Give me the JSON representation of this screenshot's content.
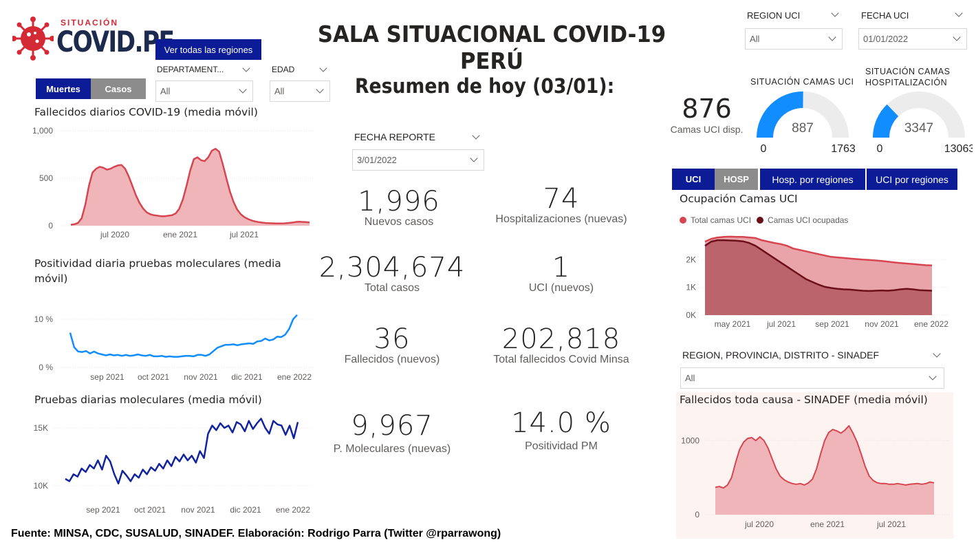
{
  "header": {
    "logo_top": "SITUACIÓN",
    "logo_main": "COVID.PE",
    "title": "SALA SITUACIONAL COVID-19 PERÚ",
    "see_all_regions": "Ver todas las regiones"
  },
  "filters": {
    "departamento": {
      "label": "DEPARTAMENT...",
      "value": "All"
    },
    "edad": {
      "label": "EDAD",
      "value": "All"
    },
    "region_uci": {
      "label": "REGION UCI",
      "value": "All"
    },
    "fecha_uci": {
      "label": "FECHA UCI",
      "value": "01/01/2022"
    },
    "fecha_reporte": {
      "label": "FECHA REPORTE",
      "value": "3/01/2022"
    },
    "region_sinadef": {
      "label": "REGION, PROVINCIA, DISTRITO - SINADEF",
      "value": "All"
    }
  },
  "left_tabs": {
    "muertes": "Muertes",
    "casos": "Casos"
  },
  "summary": {
    "title": "Resumen de hoy (03/01):",
    "kpis": [
      {
        "value": "1,996",
        "label": "Nuevos casos"
      },
      {
        "value": "74",
        "label": "Hospitalizaciones (nuevas)"
      },
      {
        "value": "2,304,674",
        "label": "Total casos"
      },
      {
        "value": "1",
        "label": "UCI (nuevos)"
      },
      {
        "value": "36",
        "label": "Fallecidos  (nuevos)"
      },
      {
        "value": "202,818",
        "label": "Total fallecidos Covid Minsa"
      },
      {
        "value": "9,967",
        "label": "P. Moleculares (nuevas)"
      },
      {
        "value": "14.0 %",
        "label": "Positividad PM"
      }
    ]
  },
  "uci_card": {
    "value": "876",
    "label": "Camas UCI disp."
  },
  "gauges": [
    {
      "title": "SITUACIÓN CAMAS UCI",
      "value": 887,
      "min": 0,
      "max": 1763,
      "value_label": "887",
      "min_label": "0",
      "max_label": "1763",
      "color": "#118dff"
    },
    {
      "title_line1": "SITUACIÓN CAMAS",
      "title_line2": "HOSPITALIZACIÓN",
      "value": 3347,
      "min": 0,
      "max": 13063,
      "value_label": "3347",
      "min_label": "0",
      "max_label": "13063",
      "color": "#118dff"
    }
  ],
  "right_tabs": {
    "uci": "UCI",
    "hosp": "HOSP",
    "hosp_regiones": "Hosp. por regiones",
    "uci_regiones": "UCI por regiones"
  },
  "footer": {
    "source": "Fuente: MINSA, CDC, SUSALUD, SINADEF. Elaboración: Rodrigo Parra (Twitter @rparrawong)"
  },
  "colors": {
    "navy": "#0b1c96",
    "red": "#d64550",
    "red_fill": "#efb5b9",
    "blue": "#118dff",
    "darkblue": "#12239e",
    "maroon": "#6b0f1a"
  },
  "chart_data": [
    {
      "id": "fallecidos",
      "type": "area",
      "title": "Fallecidos diarios COVID-19 (media móvil)",
      "ylim": [
        0,
        1000
      ],
      "yticks": [
        "0",
        "500",
        "1,000"
      ],
      "xticks": [
        "jul 2020",
        "ene 2021",
        "jul 2021"
      ],
      "values": [
        10,
        15,
        30,
        80,
        220,
        420,
        560,
        600,
        620,
        610,
        590,
        600,
        620,
        635,
        640,
        600,
        520,
        420,
        320,
        240,
        180,
        140,
        120,
        110,
        105,
        100,
        100,
        105,
        110,
        130,
        180,
        280,
        420,
        580,
        700,
        720,
        690,
        680,
        720,
        790,
        810,
        780,
        650,
        500,
        360,
        250,
        170,
        120,
        90,
        70,
        55,
        45,
        38,
        32,
        28,
        26,
        25,
        24,
        24,
        25,
        28,
        32,
        38,
        42,
        40,
        38,
        35
      ]
    },
    {
      "id": "positividad",
      "type": "line",
      "title": "Positividad diaria pruebas moleculares (media móvil)",
      "ylim": [
        0,
        12
      ],
      "yticks": [
        "0 %",
        "10 %"
      ],
      "xticks": [
        "sep 2021",
        "oct 2021",
        "nov 2021",
        "dic 2021",
        "ene 2022"
      ],
      "values": [
        7.2,
        4.2,
        3.3,
        3.2,
        3.4,
        2.9,
        3.3,
        2.9,
        2.7,
        2.5,
        2.7,
        2.5,
        2.6,
        2.4,
        2.6,
        2.4,
        2.5,
        2.7,
        2.5,
        2.4,
        2.6,
        2.3,
        2.3,
        2.4,
        2.2,
        2.3,
        2.2,
        2.2,
        2.3,
        2.4,
        2.4,
        2.3,
        2.6,
        2.6,
        2.4,
        2.7,
        3.4,
        4.1,
        4.4,
        4.7,
        4.7,
        4.8,
        4.6,
        4.8,
        4.9,
        5.0,
        4.9,
        5.4,
        5.5,
        6.0,
        5.6,
        5.8,
        6.4,
        6.3,
        6.8,
        8.0,
        10.0,
        10.9
      ]
    },
    {
      "id": "pruebas",
      "type": "line",
      "title": "Pruebas diarias moleculares (media móvil)",
      "ylim": [
        9000,
        16000
      ],
      "yticks": [
        "10K",
        "15K"
      ],
      "xticks": [
        "sep 2021",
        "oct 2021",
        "nov 2021",
        "dic 2021",
        "ene 2022"
      ],
      "values": [
        10600,
        10400,
        11000,
        10800,
        11500,
        11200,
        11800,
        11500,
        12200,
        11400,
        12600,
        12100,
        11000,
        10200,
        11300,
        10900,
        10400,
        11000,
        10700,
        11400,
        11000,
        11600,
        11300,
        11900,
        11500,
        12200,
        11700,
        12500,
        12100,
        12700,
        12200,
        12600,
        12000,
        13000,
        12400,
        14500,
        15200,
        14800,
        15400,
        15000,
        15200,
        14600,
        15500,
        15300,
        14700,
        15600,
        14900,
        15400,
        15800,
        15000,
        14500,
        15600,
        15300,
        15200,
        14400,
        15200,
        14100,
        15500
      ]
    },
    {
      "id": "ocupacion_uci",
      "type": "area",
      "title": "Ocupación Camas UCI",
      "ylim": [
        0,
        3000
      ],
      "yticks": [
        "0K",
        "1K",
        "2K"
      ],
      "xticks": [
        "may 2021",
        "jul 2021",
        "sep 2021",
        "nov 2021",
        "ene 2022"
      ],
      "series": [
        {
          "name": "Total camas UCI",
          "values": [
            2650,
            2750,
            2800,
            2820,
            2830,
            2820,
            2820,
            2800,
            2780,
            2700,
            2650,
            2600,
            2560,
            2500,
            2400,
            2350,
            2300,
            2250,
            2200,
            2150,
            2100,
            2080,
            2060,
            2040,
            2020,
            2000,
            1990,
            1970,
            1950,
            1930,
            1900,
            1880,
            1860,
            1840,
            1820,
            1800,
            1790
          ]
        },
        {
          "name": "Camas UCI ocupadas",
          "values": [
            2500,
            2650,
            2700,
            2700,
            2690,
            2680,
            2660,
            2600,
            2500,
            2350,
            2200,
            2050,
            1900,
            1750,
            1600,
            1450,
            1300,
            1200,
            1100,
            1020,
            980,
            950,
            930,
            920,
            900,
            880,
            870,
            880,
            890,
            880,
            900,
            930,
            950,
            930,
            900,
            890,
            880
          ]
        }
      ]
    },
    {
      "id": "sinadef",
      "type": "area",
      "title": "Fallecidos toda causa - SINADEF (media móvil)",
      "ylim": [
        0,
        1300
      ],
      "yticks": [
        "0",
        "1000"
      ],
      "xticks": [
        "jul 2020",
        "ene 2021",
        "jul 2021"
      ],
      "values": [
        370,
        380,
        360,
        400,
        500,
        700,
        880,
        980,
        1030,
        1040,
        1000,
        1050,
        1000,
        900,
        760,
        620,
        520,
        470,
        440,
        420,
        410,
        420,
        400,
        430,
        480,
        620,
        820,
        1000,
        1110,
        1150,
        1130,
        1100,
        1140,
        1200,
        1100,
        980,
        820,
        650,
        520,
        460,
        430,
        420,
        420,
        410,
        410,
        420,
        410,
        400,
        410,
        415,
        420,
        410,
        420,
        440,
        430
      ]
    }
  ]
}
